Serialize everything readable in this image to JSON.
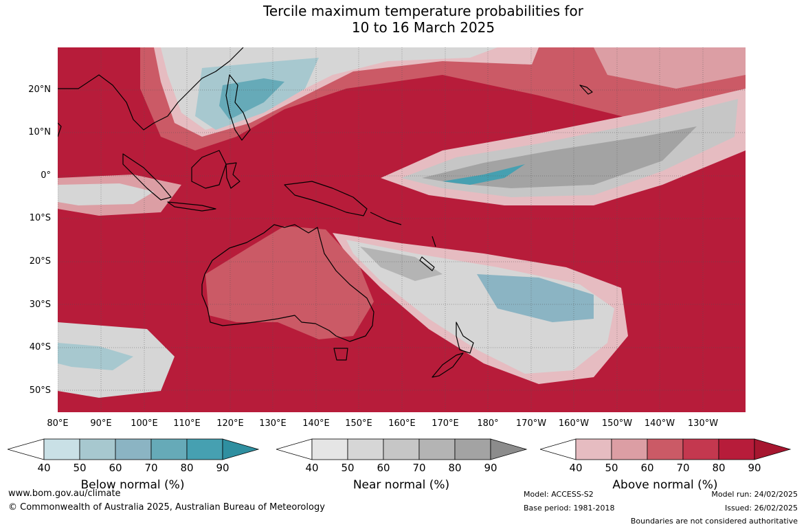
{
  "title": {
    "line1": "Tercile maximum temperature probabilities for",
    "line2": "10 to 16 March 2025"
  },
  "map": {
    "lat_labels": [
      "20°N",
      "10°N",
      "0°",
      "10°S",
      "20°S",
      "30°S",
      "40°S",
      "50°S"
    ],
    "lon_labels": [
      "80°E",
      "90°E",
      "100°E",
      "110°E",
      "120°E",
      "130°E",
      "140°E",
      "150°E",
      "160°E",
      "170°E",
      "180°",
      "170°W",
      "160°W",
      "150°W",
      "140°W",
      "130°W"
    ],
    "colors": {
      "above_90": "#b71c3a",
      "above_80": "#c4384f",
      "above_70": "#cb5a66",
      "above_60": "#d27a82",
      "above_50": "#dc9ea4",
      "above_40": "#e6bcc1",
      "near_40": "#e5e5e5",
      "near_50": "#d6d6d6",
      "near_60": "#c6c6c6",
      "near_70": "#b4b4b4",
      "near_80": "#a3a3a3",
      "near_90": "#8c8c8c",
      "below_40": "#c9e0e6",
      "below_50": "#a7c8cf",
      "below_60": "#8bb4c3",
      "below_70": "#66aab8",
      "below_80": "#46a0b1",
      "below_90": "#2f8fa0"
    }
  },
  "legends": {
    "below": {
      "ticks": [
        "40",
        "50",
        "60",
        "70",
        "80",
        "90"
      ],
      "label": "Below normal (%)"
    },
    "near": {
      "ticks": [
        "40",
        "50",
        "60",
        "70",
        "80",
        "90"
      ],
      "label": "Near normal (%)"
    },
    "above": {
      "ticks": [
        "40",
        "50",
        "60",
        "70",
        "80",
        "90"
      ],
      "label": "Above normal (%)"
    }
  },
  "footer": {
    "website": "www.bom.gov.au/climate",
    "copyright": "© Commonwealth of Australia 2025, Australian Bureau of Meteorology",
    "model": "Model: ACCESS-S2",
    "base_period": "Base period: 1981-2018",
    "model_run": "Model run: 24/02/2025",
    "issued": "Issued: 26/02/2025",
    "disclaimer": "Boundaries are not considered authoritative"
  }
}
